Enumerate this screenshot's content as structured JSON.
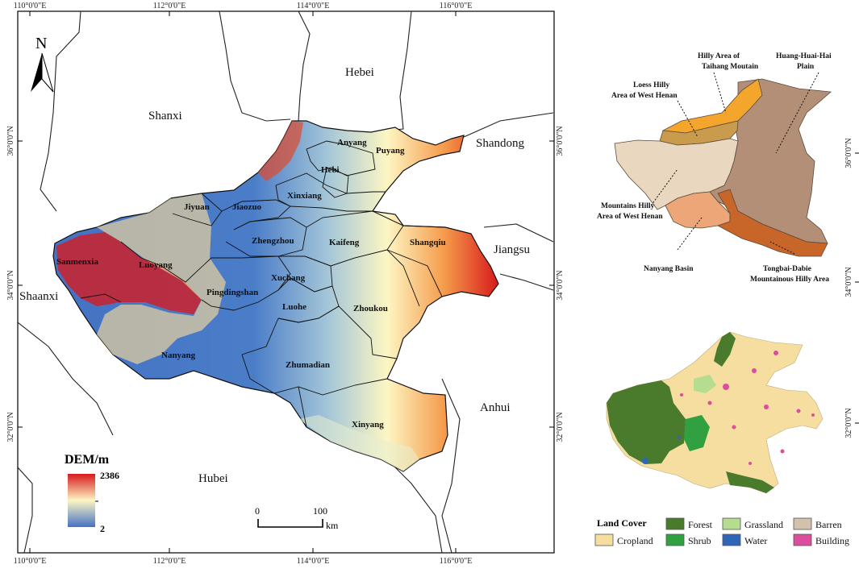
{
  "dem_map": {
    "top_ticks": [
      "110°0'0\"E",
      "112°0'0\"E",
      "114°0'0\"E",
      "116°0'0\"E"
    ],
    "bottom_ticks": [
      "110°0'0\"E",
      "112°0'0\"E",
      "114°0'0\"E",
      "116°0'0\"E"
    ],
    "left_ticks": [
      "36°0'0\"N",
      "34°0'0\"N",
      "32°0'0\"N"
    ],
    "right_ticks": [
      "36°0'0\"N",
      "34°0'0\"N",
      "32°0'0\"N"
    ],
    "north": "N",
    "provinces": [
      "Hebei",
      "Shanxi",
      "Shandong",
      "Jiangsu",
      "Shaanxi",
      "Anhui",
      "Hubei"
    ],
    "cities": [
      "Anyang",
      "Puyang",
      "Hebi",
      "Xinxiang",
      "Jiyuan",
      "Jiaozuo",
      "Zhengzhou",
      "Kaifeng",
      "Shangqiu",
      "Sanmenxia",
      "Luoyang",
      "Xuchang",
      "Pingdingshan",
      "Luohe",
      "Zhoukou",
      "Nanyang",
      "Zhumadian",
      "Xinyang"
    ],
    "dem_legend": {
      "title": "DEM/m",
      "max": "2386",
      "min": "2",
      "colors": [
        "#4472c4",
        "#fdf6c3",
        "#d7191c"
      ]
    },
    "scale_bar": {
      "start": "0",
      "end": "100",
      "unit": "km"
    }
  },
  "zones_map": {
    "right_ticks": [
      "36°0'0\"N",
      "34°0'0\"N"
    ],
    "labels": [
      "Hilly Area of",
      "Taihang Moutain",
      "Huang-Huai-Hai",
      "Plain",
      "Loess Hilly",
      "Area of West Henan",
      "Mountains Hilly",
      "Area of West Henan",
      "Nanyang Basin",
      "Tongbai-Dabie",
      "Mountainous Hilly Area"
    ],
    "colors": {
      "taihang": "#f4a52c",
      "loess": "#c99b4c",
      "plain": "#b38f78",
      "west_mountain": "#ead7bf",
      "nanyang": "#eda677",
      "tongbai": "#c8662a"
    }
  },
  "landcover_map": {
    "right_ticks": [
      "32°0'0\"N"
    ],
    "legend_title": "Land Cover",
    "classes": [
      {
        "label": "Forest",
        "color": "#4a7a2c"
      },
      {
        "label": "Grassland",
        "color": "#b5dc8f"
      },
      {
        "label": "Barren",
        "color": "#d3c0ad"
      },
      {
        "label": "Cropland",
        "color": "#f6dea0"
      },
      {
        "label": "Shrub",
        "color": "#30a040"
      },
      {
        "label": "Water",
        "color": "#2f66b8"
      },
      {
        "label": "Building",
        "color": "#dc4d9e"
      }
    ]
  }
}
